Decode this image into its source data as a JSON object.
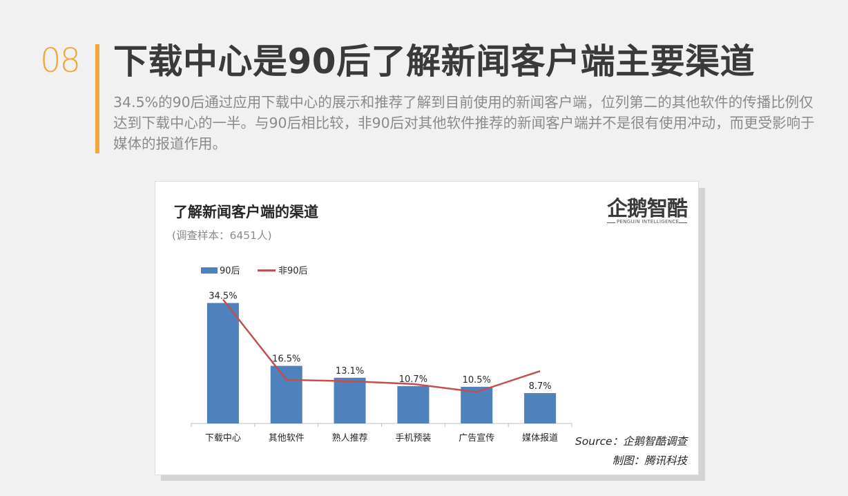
{
  "header": {
    "section_number": "08",
    "title": "下载中心是90后了解新闻客户端主要渠道",
    "intro": "34.5%的90后通过应用下载中心的展示和推荐了解到目前使用的新闻客户端，位列第二的其他软件的传播比例仅达到下载中心的一半。与90后相比较，非90后对其他软件推荐的新闻客户端并不是很有使用冲动，而更受影响于媒体的报道作用。"
  },
  "logo": {
    "name": "企鹅智酷",
    "tagline": "PENGUIN INTELLIGENCE"
  },
  "chart_data": {
    "type": "bar",
    "title": "了解新闻客户端的渠道",
    "subtitle": "(调查样本：6451人)",
    "categories": [
      "下载中心",
      "其他软件",
      "熟人推荐",
      "手机预装",
      "广告宣传",
      "媒体报道"
    ],
    "series": [
      {
        "name": "90后",
        "type": "bar",
        "color": "#4f81bd",
        "values": [
          34.5,
          16.5,
          13.1,
          10.7,
          10.5,
          8.7
        ],
        "labels": [
          "34.5%",
          "16.5%",
          "13.1%",
          "10.7%",
          "10.5%",
          "8.7%"
        ]
      },
      {
        "name": "非90后",
        "type": "line",
        "color": "#c0504d",
        "values": [
          35.5,
          12.5,
          12.1,
          11.3,
          9.0,
          15.0
        ]
      }
    ],
    "ylim": [
      0,
      36
    ],
    "legend": "top-left",
    "grid": false
  },
  "footer": {
    "source": "Source：企鹅智酷调查",
    "credit": "制图：腾讯科技"
  }
}
